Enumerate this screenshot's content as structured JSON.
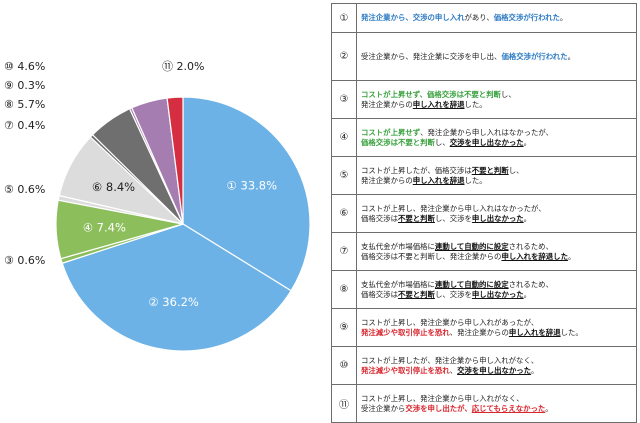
{
  "chart_data": {
    "type": "pie",
    "start_angle_deg": 0,
    "direction": "clockwise",
    "slices": [
      {
        "label": "①",
        "value": 33.8,
        "display": "① 33.8%",
        "color": "#6cb2e6",
        "label_pos": "inside"
      },
      {
        "label": "②",
        "value": 36.2,
        "display": "② 36.2%",
        "color": "#6cb2e6",
        "label_pos": "inside"
      },
      {
        "label": "③",
        "value": 0.6,
        "display": "③ 0.6%",
        "color": "#8cbe5c",
        "label_pos": "outside"
      },
      {
        "label": "④",
        "value": 7.4,
        "display": "④ 7.4%",
        "color": "#8cbe5c",
        "label_pos": "inside"
      },
      {
        "label": "⑤",
        "value": 0.6,
        "display": "⑤ 0.6%",
        "color": "#dcdcdc",
        "label_pos": "outside"
      },
      {
        "label": "⑥",
        "value": 8.4,
        "display": "⑥ 8.4%",
        "color": "#dcdcdc",
        "label_pos": "inside"
      },
      {
        "label": "⑦",
        "value": 0.4,
        "display": "⑦ 0.4%",
        "color": "#6f6f6f",
        "label_pos": "outside"
      },
      {
        "label": "⑧",
        "value": 5.7,
        "display": "⑧ 5.7%",
        "color": "#6f6f6f",
        "label_pos": "outside"
      },
      {
        "label": "⑨",
        "value": 0.3,
        "display": "⑨ 0.3%",
        "color": "#a57db0",
        "label_pos": "outside"
      },
      {
        "label": "⑩",
        "value": 4.6,
        "display": "⑩ 4.6%",
        "color": "#a57db0",
        "label_pos": "outside"
      },
      {
        "label": "⑪",
        "value": 2.0,
        "display": "⑪ 2.0%",
        "color": "#d42e40",
        "label_pos": "outside"
      }
    ]
  },
  "legend": [
    {
      "num": "①",
      "lines": [
        [
          {
            "t": "発注企業から、交渉の申し入れ",
            "c": "blue"
          },
          {
            "t": "があり、"
          },
          {
            "t": "価格交渉が行われた",
            "c": "blue"
          },
          {
            "t": "。"
          }
        ]
      ]
    },
    {
      "num": "②",
      "lines": [
        [
          {
            "t": "受注企業から、発注企業に交渉を申し出、"
          },
          {
            "t": "価格交渉が行われた",
            "c": "blue"
          },
          {
            "t": "。"
          }
        ]
      ]
    },
    {
      "num": "③",
      "lines": [
        [
          {
            "t": "コストが上昇せず、",
            "c": "green"
          },
          {
            "t": "価格交渉は不要と判断",
            "c": "green"
          },
          {
            "t": "し、"
          }
        ],
        [
          {
            "t": "発注企業からの"
          },
          {
            "t": "申し入れを辞退",
            "c": "dark",
            "u": true
          },
          {
            "t": "した。"
          }
        ]
      ]
    },
    {
      "num": "④",
      "lines": [
        [
          {
            "t": "コストが上昇せず",
            "c": "green"
          },
          {
            "t": "、発注企業から申し入れはなかったが、"
          }
        ],
        [
          {
            "t": "価格交渉は不要と判断",
            "c": "green"
          },
          {
            "t": "し、"
          },
          {
            "t": "交渉を申し出なかった",
            "c": "dark",
            "u": true
          },
          {
            "t": "。"
          }
        ]
      ]
    },
    {
      "num": "⑤",
      "lines": [
        [
          {
            "t": "コストが上昇したが、価格交渉は"
          },
          {
            "t": "不要と判断",
            "c": "dark",
            "u": true
          },
          {
            "t": "し、"
          }
        ],
        [
          {
            "t": "発注企業からの"
          },
          {
            "t": "申し入れを辞退",
            "c": "dark",
            "u": true
          },
          {
            "t": "した。"
          }
        ]
      ]
    },
    {
      "num": "⑥",
      "lines": [
        [
          {
            "t": "コストが上昇し、発注企業から申し入れはなかったが、"
          }
        ],
        [
          {
            "t": "価格交渉は"
          },
          {
            "t": "不要と判断",
            "c": "dark",
            "u": true
          },
          {
            "t": "し、交渉を"
          },
          {
            "t": "申し出なかった",
            "c": "dark",
            "u": true
          },
          {
            "t": "。"
          }
        ]
      ]
    },
    {
      "num": "⑦",
      "lines": [
        [
          {
            "t": "支払代金が市場価格に"
          },
          {
            "t": "連動して自動的に設定",
            "c": "dark",
            "u": true
          },
          {
            "t": "されるため、"
          }
        ],
        [
          {
            "t": "価格交渉は不要と判断し、発注企業からの"
          },
          {
            "t": "申し入れを辞退した",
            "c": "dark",
            "u": true
          },
          {
            "t": "。"
          }
        ]
      ]
    },
    {
      "num": "⑧",
      "lines": [
        [
          {
            "t": "支払代金が市場価格に"
          },
          {
            "t": "連動して自動的に設定",
            "c": "dark",
            "u": true
          },
          {
            "t": "されるため、"
          }
        ],
        [
          {
            "t": "価格交渉は"
          },
          {
            "t": "不要と判断",
            "c": "dark",
            "u": true
          },
          {
            "t": "し、交渉を"
          },
          {
            "t": "申し出なかった",
            "c": "dark",
            "u": true
          },
          {
            "t": "。"
          }
        ]
      ]
    },
    {
      "num": "⑨",
      "lines": [
        [
          {
            "t": "コストが上昇し、発注企業から申し入れがあったが、"
          }
        ],
        [
          {
            "t": "発注減少や取引停止を恐れ",
            "c": "red"
          },
          {
            "t": "、発注企業からの"
          },
          {
            "t": "申し入れを辞退",
            "c": "dark",
            "u": true
          },
          {
            "t": "した。"
          }
        ]
      ]
    },
    {
      "num": "⑩",
      "lines": [
        [
          {
            "t": "コストが上昇したが、発注企業から申し入れがなく、"
          }
        ],
        [
          {
            "t": "発注減少や取引停止を恐れ",
            "c": "red"
          },
          {
            "t": "、"
          },
          {
            "t": "交渉を申し出なかった",
            "c": "dark",
            "u": true
          },
          {
            "t": "。"
          }
        ]
      ]
    },
    {
      "num": "⑪",
      "lines": [
        [
          {
            "t": "コストが上昇し、発注企業から申し入れがなく、"
          }
        ],
        [
          {
            "t": "受注企業から"
          },
          {
            "t": "交渉を申し出たが、",
            "c": "red"
          },
          {
            "t": "応じてもらえなかった",
            "c": "red",
            "u": true
          },
          {
            "t": "。"
          }
        ]
      ]
    }
  ]
}
